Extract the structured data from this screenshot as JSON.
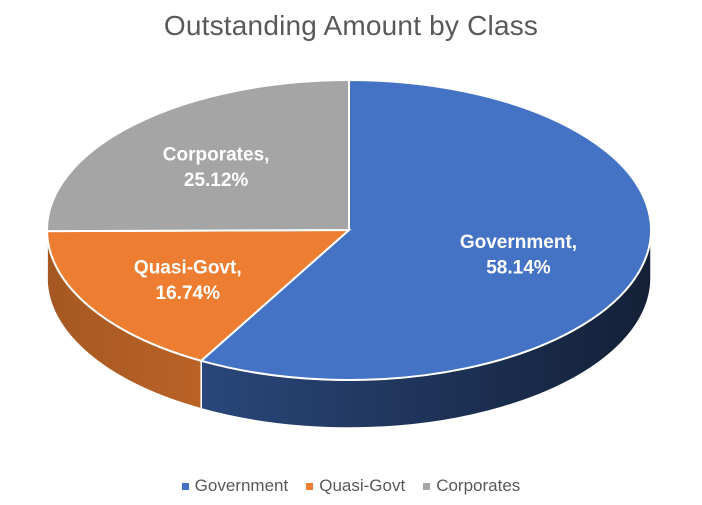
{
  "chart_data": {
    "type": "pie",
    "title": "Outstanding Amount by Class",
    "style": "3d",
    "legend_position": "bottom",
    "slices": [
      {
        "name": "Government",
        "value": 58.14,
        "label_line1": "Government,",
        "label_line2": "58.14%",
        "color": "#4472C4"
      },
      {
        "name": "Quasi-Govt",
        "value": 16.74,
        "label_line1": "Quasi-Govt,",
        "label_line2": "16.74%",
        "color": "#ED7D31"
      },
      {
        "name": "Corporates",
        "value": 25.12,
        "label_line1": "Corporates,",
        "label_line2": "25.12%",
        "color": "#A5A5A5"
      }
    ],
    "legend": [
      "Government",
      "Quasi-Govt",
      "Corporates"
    ]
  }
}
